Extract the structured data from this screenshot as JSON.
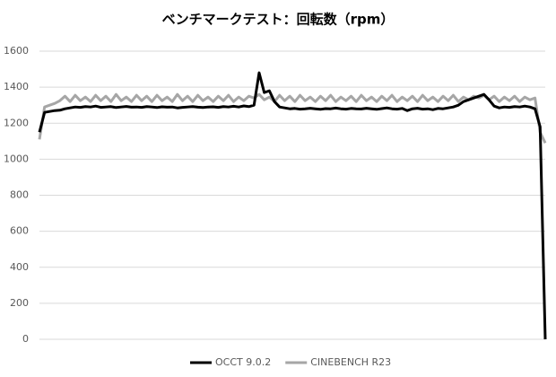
{
  "chart_data": {
    "type": "line",
    "title": "ベンチマークテスト：回転数（rpm）",
    "ylim": [
      0,
      1600
    ],
    "yticks": [
      0,
      200,
      400,
      600,
      800,
      1000,
      1200,
      1400,
      1600
    ],
    "grid": true,
    "legend": "bottom",
    "series": [
      {
        "name": "OCCT 9.0.2",
        "color": "#000000",
        "values": [
          1150,
          1260,
          1265,
          1270,
          1272,
          1280,
          1285,
          1290,
          1288,
          1292,
          1290,
          1295,
          1288,
          1290,
          1292,
          1287,
          1290,
          1293,
          1289,
          1290,
          1288,
          1292,
          1290,
          1287,
          1291,
          1289,
          1290,
          1285,
          1288,
          1290,
          1292,
          1289,
          1287,
          1290,
          1291,
          1288,
          1292,
          1290,
          1294,
          1290,
          1296,
          1292,
          1300,
          1480,
          1370,
          1380,
          1320,
          1290,
          1285,
          1280,
          1282,
          1278,
          1280,
          1283,
          1280,
          1277,
          1281,
          1280,
          1284,
          1280,
          1278,
          1282,
          1280,
          1279,
          1283,
          1280,
          1277,
          1281,
          1285,
          1280,
          1278,
          1282,
          1270,
          1280,
          1283,
          1278,
          1280,
          1275,
          1282,
          1280,
          1285,
          1290,
          1300,
          1320,
          1330,
          1340,
          1350,
          1360,
          1330,
          1295,
          1285,
          1290,
          1288,
          1292,
          1290,
          1295,
          1290,
          1280,
          1180,
          0
        ]
      },
      {
        "name": "CINEBENCH R23",
        "color": "#a6a6a6",
        "values": [
          1110,
          1290,
          1300,
          1310,
          1325,
          1350,
          1320,
          1355,
          1325,
          1345,
          1320,
          1355,
          1325,
          1350,
          1320,
          1360,
          1325,
          1345,
          1320,
          1355,
          1325,
          1350,
          1320,
          1355,
          1325,
          1345,
          1320,
          1360,
          1325,
          1350,
          1320,
          1355,
          1325,
          1345,
          1320,
          1350,
          1325,
          1355,
          1320,
          1345,
          1325,
          1350,
          1340,
          1360,
          1330,
          1345,
          1320,
          1355,
          1325,
          1350,
          1320,
          1355,
          1325,
          1345,
          1320,
          1350,
          1325,
          1355,
          1320,
          1345,
          1325,
          1350,
          1320,
          1355,
          1325,
          1345,
          1320,
          1350,
          1325,
          1355,
          1320,
          1345,
          1325,
          1350,
          1320,
          1355,
          1325,
          1345,
          1320,
          1350,
          1325,
          1355,
          1320,
          1345,
          1330,
          1350,
          1340,
          1355,
          1330,
          1350,
          1320,
          1345,
          1325,
          1350,
          1320,
          1345,
          1330,
          1340,
          1150,
          1090
        ]
      }
    ]
  }
}
